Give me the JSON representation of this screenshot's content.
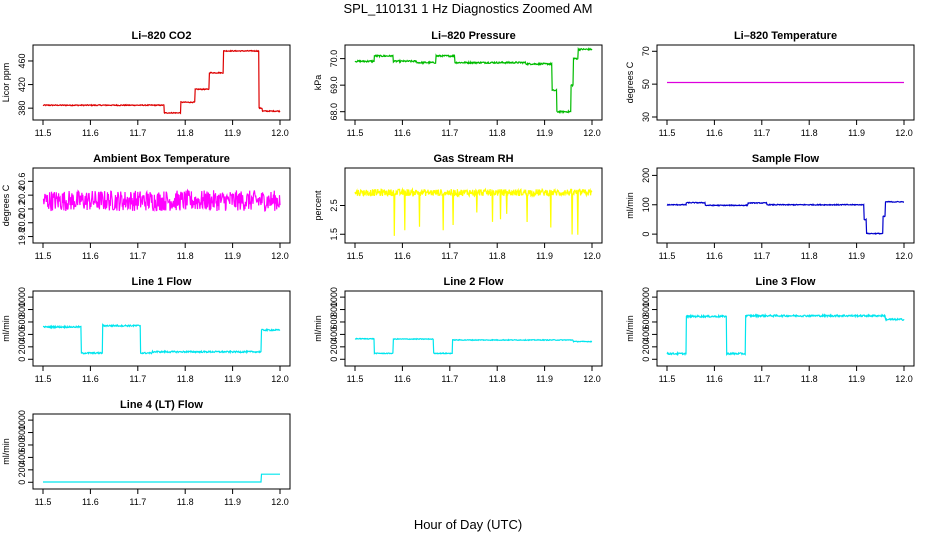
{
  "figure": {
    "title": "SPL_110131  1 Hz Diagnostics Zoomed AM",
    "xlabel": "Hour of Day (UTC)"
  },
  "chart_data": [
    {
      "type": "line",
      "title": "Li–820 CO2",
      "ylabel": "Licor ppm",
      "color": "#dd0000",
      "xlim": [
        11.5,
        12.0
      ],
      "xticks": [
        "11.5",
        "11.6",
        "11.7",
        "11.8",
        "11.9",
        "12.0"
      ],
      "ylim": [
        365,
        482
      ],
      "yticks": [
        "380",
        "420",
        "460"
      ],
      "ytick_values": [
        380,
        420,
        460
      ],
      "noise": 0.8,
      "series": [
        {
          "x": [
            11.5,
            11.755,
            11.755,
            11.79,
            11.79,
            11.82,
            11.82,
            11.85,
            11.85,
            11.88,
            11.88,
            11.955,
            11.955,
            11.962,
            11.962,
            12.0
          ],
          "y": [
            385,
            385,
            372,
            372,
            390,
            390,
            412,
            412,
            440,
            440,
            477,
            477,
            380,
            380,
            375,
            375
          ]
        }
      ]
    },
    {
      "type": "line",
      "title": "Li–820 Pressure",
      "ylabel": "kPa",
      "color": "#00bb00",
      "xlim": [
        11.5,
        12.0
      ],
      "xticks": [
        "11.5",
        "11.6",
        "11.7",
        "11.8",
        "11.9",
        "12.0"
      ],
      "ylim": [
        67.8,
        70.4
      ],
      "yticks": [
        "68.0",
        "69.0",
        "70.0"
      ],
      "ytick_values": [
        68.0,
        69.0,
        70.0
      ],
      "noise": 0.03,
      "series": [
        {
          "x": [
            11.5,
            11.54,
            11.54,
            11.58,
            11.58,
            11.63,
            11.63,
            11.67,
            11.67,
            11.71,
            11.71,
            11.86,
            11.86,
            11.915,
            11.915,
            11.925,
            11.925,
            11.955,
            11.955,
            11.96,
            11.96,
            11.97,
            11.97,
            12.0
          ],
          "y": [
            69.9,
            69.9,
            70.1,
            70.1,
            69.9,
            69.9,
            69.85,
            69.85,
            70.1,
            70.1,
            69.85,
            69.85,
            69.8,
            69.8,
            68.8,
            68.8,
            68.0,
            68.0,
            69.0,
            69.0,
            70.0,
            70.0,
            70.35,
            70.35
          ]
        }
      ]
    },
    {
      "type": "line",
      "title": "Li–820 Temperature",
      "ylabel": "degrees C",
      "color": "#dd00dd",
      "xlim": [
        11.5,
        12.0
      ],
      "xticks": [
        "11.5",
        "11.6",
        "11.7",
        "11.8",
        "11.9",
        "12.0"
      ],
      "ylim": [
        30,
        72
      ],
      "yticks": [
        "30",
        "50",
        "70"
      ],
      "ytick_values": [
        30,
        50,
        70
      ],
      "noise": 0,
      "series": [
        {
          "x": [
            11.5,
            12.0
          ],
          "y": [
            51,
            51
          ]
        }
      ]
    },
    {
      "type": "line",
      "title": "Ambient Box Temperature",
      "ylabel": "degrees C",
      "color": "#ff00ff",
      "xlim": [
        11.5,
        12.0
      ],
      "xticks": [
        "11.5",
        "11.6",
        "11.7",
        "11.8",
        "11.9",
        "12.0"
      ],
      "ylim": [
        19.75,
        20.75
      ],
      "yticks": [
        "19.8",
        "20.0",
        "20.2",
        "20.4",
        "20.6"
      ],
      "ytick_values": [
        19.8,
        20.0,
        20.2,
        20.4,
        20.6
      ],
      "noise": 0.15,
      "series": [
        {
          "x": [
            11.5,
            12.0
          ],
          "y": [
            20.32,
            20.32
          ]
        }
      ]
    },
    {
      "type": "line",
      "title": "Gas Stream RH",
      "ylabel": "percent",
      "color": "#ffff00",
      "xlim": [
        11.5,
        12.0
      ],
      "xticks": [
        "11.5",
        "11.6",
        "11.7",
        "11.8",
        "11.9",
        "12.0"
      ],
      "ylim": [
        1.3,
        3.7
      ],
      "yticks": [
        "1.5",
        "2.5"
      ],
      "ytick_values": [
        1.5,
        2.5
      ],
      "noise": 0.12,
      "series": [
        {
          "x": [
            11.5,
            12.0
          ],
          "y": [
            2.95,
            2.95
          ]
        }
      ]
    },
    {
      "type": "line",
      "title": "Sample Flow",
      "ylabel": "ml/min",
      "color": "#0000cc",
      "xlim": [
        11.5,
        12.0
      ],
      "xticks": [
        "11.5",
        "11.6",
        "11.7",
        "11.8",
        "11.9",
        "12.0"
      ],
      "ylim": [
        -20,
        215
      ],
      "yticks": [
        "0",
        "100",
        "200"
      ],
      "ytick_values": [
        0,
        100,
        200
      ],
      "noise": 1.5,
      "series": [
        {
          "x": [
            11.5,
            11.54,
            11.54,
            11.58,
            11.58,
            11.67,
            11.67,
            11.71,
            11.71,
            11.915,
            11.915,
            11.92,
            11.92,
            11.955,
            11.955,
            11.96,
            11.96,
            12.0
          ],
          "y": [
            100,
            100,
            107,
            107,
            98,
            98,
            106,
            106,
            100,
            100,
            50,
            50,
            2,
            2,
            60,
            60,
            110,
            110
          ]
        }
      ]
    },
    {
      "type": "line",
      "title": "Line 1 Flow",
      "ylabel": "ml/min",
      "color": "#00e5ee",
      "xlim": [
        11.5,
        12.0
      ],
      "xticks": [
        "11.5",
        "11.6",
        "11.7",
        "11.8",
        "11.9",
        "12.0"
      ],
      "ylim": [
        -60,
        1050
      ],
      "yticks": [
        "0",
        "200",
        "400",
        "600",
        "800",
        "1000"
      ],
      "ytick_values": [
        0,
        200,
        400,
        600,
        800,
        1000
      ],
      "noise": 12,
      "series": [
        {
          "x": [
            11.5,
            11.58,
            11.58,
            11.625,
            11.625,
            11.705,
            11.705,
            11.73,
            11.73,
            11.96,
            11.96,
            12.0
          ],
          "y": [
            520,
            520,
            100,
            100,
            540,
            540,
            100,
            100,
            120,
            120,
            470,
            470
          ]
        }
      ]
    },
    {
      "type": "line",
      "title": "Line 2 Flow",
      "ylabel": "ml/min",
      "color": "#00e5ee",
      "xlim": [
        11.5,
        12.0
      ],
      "xticks": [
        "11.5",
        "11.6",
        "11.7",
        "11.8",
        "11.9",
        "12.0"
      ],
      "ylim": [
        -60,
        1050
      ],
      "yticks": [
        "0",
        "200",
        "400",
        "600",
        "800",
        "1000"
      ],
      "ytick_values": [
        0,
        200,
        400,
        600,
        800,
        1000
      ],
      "noise": 6,
      "series": [
        {
          "x": [
            11.5,
            11.54,
            11.54,
            11.58,
            11.58,
            11.665,
            11.665,
            11.705,
            11.705,
            11.96,
            11.96,
            12.0
          ],
          "y": [
            330,
            330,
            95,
            95,
            325,
            325,
            95,
            95,
            310,
            310,
            285,
            285
          ]
        }
      ]
    },
    {
      "type": "line",
      "title": "Line 3 Flow",
      "ylabel": "ml/min",
      "color": "#00e5ee",
      "xlim": [
        11.5,
        12.0
      ],
      "xticks": [
        "11.5",
        "11.6",
        "11.7",
        "11.8",
        "11.9",
        "12.0"
      ],
      "ylim": [
        -60,
        1050
      ],
      "yticks": [
        "0",
        "200",
        "400",
        "600",
        "800",
        "1000"
      ],
      "ytick_values": [
        0,
        200,
        400,
        600,
        800,
        1000
      ],
      "noise": 14,
      "series": [
        {
          "x": [
            11.5,
            11.54,
            11.54,
            11.625,
            11.625,
            11.665,
            11.665,
            11.96,
            11.96,
            12.0
          ],
          "y": [
            90,
            90,
            690,
            690,
            90,
            90,
            700,
            700,
            640,
            640
          ]
        }
      ]
    },
    {
      "type": "line",
      "title": "Line 4 (LT) Flow",
      "ylabel": "ml/min",
      "color": "#00e5ee",
      "xlim": [
        11.5,
        12.0
      ],
      "xticks": [
        "11.5",
        "11.6",
        "11.7",
        "11.8",
        "11.9",
        "12.0"
      ],
      "ylim": [
        -60,
        1050
      ],
      "yticks": [
        "0",
        "200",
        "400",
        "600",
        "800",
        "1000"
      ],
      "ytick_values": [
        0,
        200,
        400,
        600,
        800,
        1000
      ],
      "noise": 0,
      "series": [
        {
          "x": [
            11.5,
            11.96,
            11.96,
            12.0
          ],
          "y": [
            5,
            5,
            130,
            130
          ]
        }
      ]
    }
  ]
}
